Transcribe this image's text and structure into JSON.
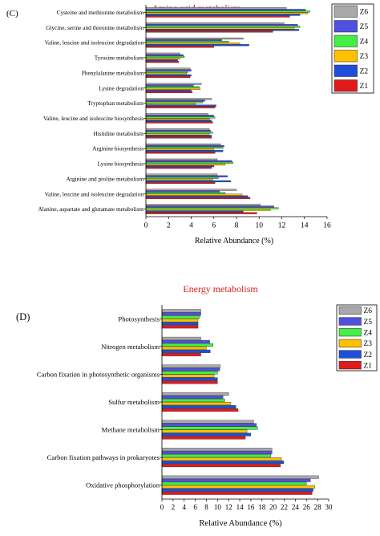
{
  "chart_data": [
    {
      "panel_label": "(C)",
      "type": "bar",
      "orientation": "horizontal",
      "title": "Amino acid metabolism",
      "xlabel": "Relative Abundance  (%)",
      "ylabel": "",
      "xlim": [
        0,
        16
      ],
      "xticks": [
        0,
        2,
        4,
        6,
        8,
        10,
        12,
        14,
        16
      ],
      "grid": false,
      "legend_position": "top-right",
      "categories": [
        "Cysteine and methionine metabolism",
        "Glycine, serine and threonine metabolism",
        "Valine, leucine and isoleucine degradation",
        "Tyrosine metabolism",
        "Phenylalanine metabolism",
        "Lysine degradation",
        "Tryptophan metabolism",
        "Valine, leucine and isoleucine biosynthesis",
        "Histidine metabolism",
        "Arginine biosynthesis",
        "Lysine biosynthesis",
        "Arginine and proline metabolism",
        "Valine, leucine and isoleucine degradation",
        "Alanine, aspartate and glutamate metabolism"
      ],
      "series": [
        {
          "name": "Z6",
          "color": "#a9a9a9",
          "values": [
            12.4,
            12.2,
            8.6,
            3.0,
            3.9,
            4.9,
            5.8,
            5.5,
            5.6,
            6.6,
            6.3,
            6.3,
            8.0,
            10.1
          ]
        },
        {
          "name": "Z5",
          "color": "#5050e0",
          "values": [
            14.1,
            13.4,
            6.7,
            3.3,
            4.0,
            4.2,
            5.2,
            6.0,
            5.7,
            6.9,
            7.6,
            7.2,
            6.5,
            11.3
          ]
        },
        {
          "name": "Z4",
          "color": "#44ee44",
          "values": [
            14.5,
            13.6,
            7.3,
            3.4,
            3.7,
            4.7,
            5.0,
            6.1,
            5.9,
            6.8,
            7.7,
            6.4,
            7.0,
            11.7
          ]
        },
        {
          "name": "Z3",
          "color": "#ffc000",
          "values": [
            14.3,
            13.1,
            8.3,
            3.0,
            3.6,
            4.8,
            4.4,
            5.6,
            5.6,
            6.0,
            7.0,
            5.9,
            8.5,
            11.0
          ]
        },
        {
          "name": "Z2",
          "color": "#1e4fd8",
          "values": [
            13.6,
            13.5,
            9.1,
            2.8,
            4.0,
            4.0,
            6.2,
            5.8,
            5.8,
            6.8,
            6.0,
            7.5,
            9.0,
            8.6
          ]
        },
        {
          "name": "Z1",
          "color": "#e01b1b",
          "values": [
            12.7,
            11.2,
            6.0,
            2.9,
            3.9,
            4.1,
            6.1,
            5.9,
            5.8,
            6.1,
            5.8,
            6.1,
            9.2,
            9.8
          ]
        }
      ]
    },
    {
      "panel_label": "(D)",
      "type": "bar",
      "orientation": "horizontal",
      "title": "Energy metabolism",
      "xlabel": "Relative Abundance  (%)",
      "ylabel": "",
      "xlim": [
        0,
        30
      ],
      "xticks": [
        0,
        2,
        4,
        6,
        8,
        10,
        12,
        14,
        16,
        18,
        20,
        22,
        24,
        26,
        28,
        30
      ],
      "grid": false,
      "legend_position": "top-right",
      "categories": [
        "Photosynthesis",
        "Nitrogen metabolism",
        "Carbon fixation in photosynthetic organisms",
        "Sulfur metabolism",
        "Methane metabolism",
        "Carbon fixation pathways in prokaryotes",
        "Oxidative phosphorylation"
      ],
      "series": [
        {
          "name": "Z6",
          "color": "#a9a9a9",
          "values": [
            7.0,
            7.0,
            10.5,
            12.0,
            16.5,
            19.8,
            28.2
          ]
        },
        {
          "name": "Z5",
          "color": "#5050e0",
          "values": [
            7.0,
            8.6,
            10.4,
            11.0,
            17.0,
            19.8,
            26.7
          ]
        },
        {
          "name": "Z4",
          "color": "#44ee44",
          "values": [
            6.8,
            9.2,
            10.0,
            11.3,
            17.2,
            19.6,
            26.0
          ]
        },
        {
          "name": "Z3",
          "color": "#ffc000",
          "values": [
            6.5,
            8.0,
            9.4,
            12.4,
            15.3,
            21.5,
            27.5
          ]
        },
        {
          "name": "Z2",
          "color": "#1e4fd8",
          "values": [
            6.5,
            8.7,
            10.0,
            13.3,
            16.0,
            21.9,
            27.2
          ]
        },
        {
          "name": "Z1",
          "color": "#e01b1b",
          "values": [
            6.5,
            7.0,
            10.0,
            13.7,
            15.0,
            21.3,
            27.0
          ]
        }
      ]
    }
  ]
}
